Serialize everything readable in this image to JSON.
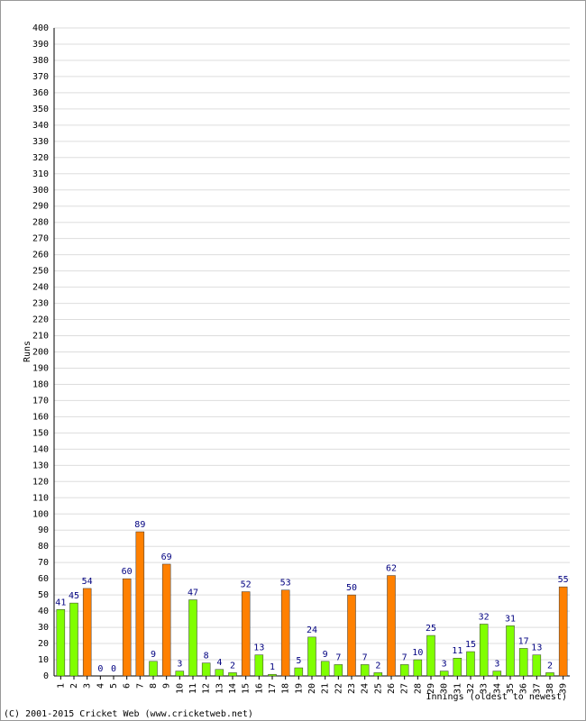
{
  "chart_data": {
    "type": "bar",
    "y_label": "Runs",
    "x_label": "Innings (oldest to newest)",
    "footer": "(C) 2001-2015 Cricket Web (www.cricketweb.net)",
    "categories": [
      "1",
      "2",
      "3",
      "4",
      "5",
      "6",
      "7",
      "8",
      "9",
      "10",
      "11",
      "12",
      "13",
      "14",
      "15",
      "16",
      "17",
      "18",
      "19",
      "20",
      "21",
      "22",
      "23",
      "24",
      "25",
      "26",
      "27",
      "28",
      "29",
      "30",
      "31",
      "32",
      "33",
      "34",
      "35",
      "36",
      "37",
      "38",
      "39"
    ],
    "values": [
      41,
      45,
      54,
      0,
      0,
      60,
      89,
      9,
      69,
      3,
      47,
      8,
      4,
      2,
      52,
      13,
      1,
      53,
      5,
      24,
      9,
      7,
      50,
      7,
      2,
      62,
      7,
      10,
      25,
      3,
      11,
      15,
      32,
      3,
      31,
      17,
      13,
      2,
      55
    ],
    "colors": [
      "#80ff00",
      "#80ff00",
      "#ff8000",
      "#80ff00",
      "#80ff00",
      "#ff8000",
      "#ff8000",
      "#80ff00",
      "#ff8000",
      "#80ff00",
      "#80ff00",
      "#80ff00",
      "#80ff00",
      "#80ff00",
      "#ff8000",
      "#80ff00",
      "#80ff00",
      "#ff8000",
      "#80ff00",
      "#80ff00",
      "#80ff00",
      "#80ff00",
      "#ff8000",
      "#80ff00",
      "#80ff00",
      "#ff8000",
      "#80ff00",
      "#80ff00",
      "#80ff00",
      "#80ff00",
      "#80ff00",
      "#80ff00",
      "#80ff00",
      "#80ff00",
      "#80ff00",
      "#80ff00",
      "#80ff00",
      "#80ff00",
      "#ff8000"
    ],
    "ylim": [
      0,
      400
    ],
    "yticks": [
      0,
      10,
      20,
      30,
      40,
      50,
      60,
      70,
      80,
      90,
      100,
      110,
      120,
      130,
      140,
      150,
      160,
      170,
      180,
      190,
      200,
      210,
      220,
      230,
      240,
      250,
      260,
      270,
      280,
      290,
      300,
      310,
      320,
      330,
      340,
      350,
      360,
      370,
      380,
      390,
      400
    ],
    "grid": true
  }
}
